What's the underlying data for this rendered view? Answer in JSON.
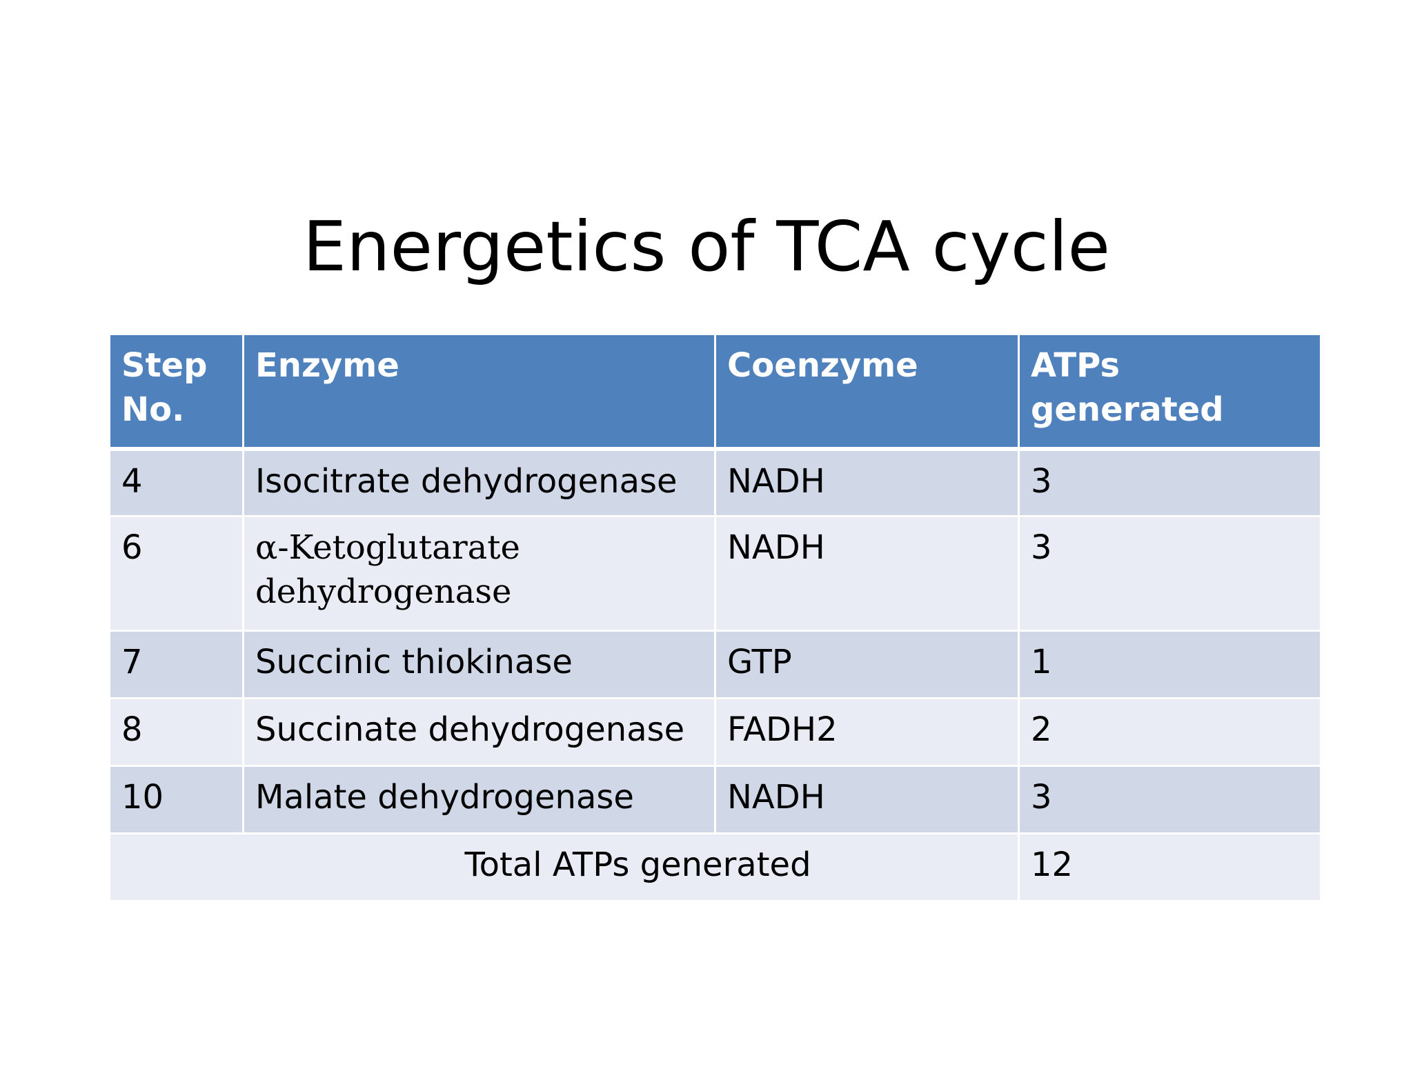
{
  "title": "Energetics of TCA cycle",
  "table": {
    "headers": {
      "step": "Step No.",
      "enzyme": "Enzyme",
      "coenzyme": "Coenzyme",
      "atps": "ATPs generated"
    },
    "rows": [
      {
        "step": "4",
        "enzyme": "Isocitrate dehydrogenase",
        "coenzyme": "NADH",
        "atps": "3"
      },
      {
        "step": "6",
        "enzyme": "α-Ketoglutarate dehydrogenase",
        "coenzyme": "NADH",
        "atps": "3"
      },
      {
        "step": "7",
        "enzyme": "Succinic thiokinase",
        "coenzyme": "GTP",
        "atps": "1"
      },
      {
        "step": "8",
        "enzyme": "Succinate dehydrogenase",
        "coenzyme": "FADH2",
        "atps": "2"
      },
      {
        "step": "10",
        "enzyme": "Malate dehydrogenase",
        "coenzyme": "NADH",
        "atps": "3"
      }
    ],
    "total": {
      "label": "Total ATPs generated",
      "value": "12"
    }
  },
  "colors": {
    "header_bg": "#4f81bd",
    "row_dark": "#d0d8e8",
    "row_light": "#e9ecf4"
  }
}
